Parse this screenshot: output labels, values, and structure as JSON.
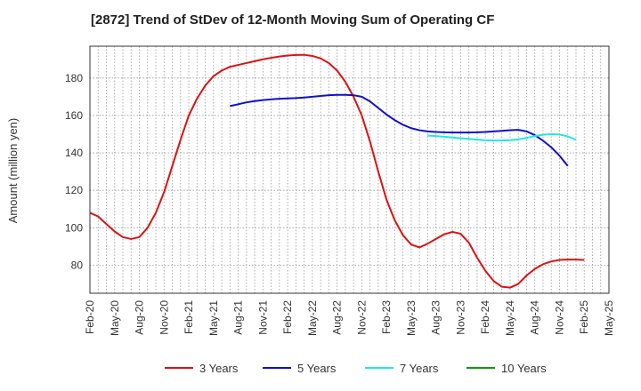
{
  "chart_data": {
    "type": "line",
    "title": "[2872]  Trend of StDev of 12-Month Moving Sum of Operating CF",
    "xlabel": "",
    "ylabel": "Amount (million yen)",
    "ylim": [
      65,
      197
    ],
    "yticks": [
      80,
      100,
      120,
      140,
      160,
      180
    ],
    "xticks": [
      "Feb-20",
      "May-20",
      "Aug-20",
      "Nov-20",
      "Feb-21",
      "May-21",
      "Aug-21",
      "Nov-21",
      "Feb-22",
      "May-22",
      "Aug-22",
      "Nov-22",
      "Feb-23",
      "May-23",
      "Aug-23",
      "Nov-23",
      "Feb-24",
      "May-24",
      "Aug-24",
      "Nov-24",
      "Feb-25",
      "May-25"
    ],
    "grid": true,
    "legend_position": "bottom",
    "series": [
      {
        "name": "3 Years",
        "color": "#dd1111",
        "values": [
          [
            0,
            108
          ],
          [
            1,
            106
          ],
          [
            2,
            102
          ],
          [
            3,
            98
          ],
          [
            4,
            95
          ],
          [
            5,
            94
          ],
          [
            6,
            95
          ],
          [
            7,
            100
          ],
          [
            8,
            108
          ],
          [
            9,
            119
          ],
          [
            10,
            133
          ],
          [
            11,
            147
          ],
          [
            12,
            160
          ],
          [
            13,
            169
          ],
          [
            14,
            176
          ],
          [
            15,
            181
          ],
          [
            16,
            184
          ],
          [
            17,
            186
          ],
          [
            18,
            187
          ],
          [
            19,
            188
          ],
          [
            20,
            189
          ],
          [
            21,
            190
          ],
          [
            22,
            190.8
          ],
          [
            23,
            191.5
          ],
          [
            24,
            192
          ],
          [
            25,
            192.3
          ],
          [
            26,
            192.4
          ],
          [
            27,
            191.8
          ],
          [
            28,
            190.5
          ],
          [
            29,
            188
          ],
          [
            30,
            184
          ],
          [
            31,
            178
          ],
          [
            32,
            170
          ],
          [
            33,
            160
          ],
          [
            34,
            146
          ],
          [
            35,
            130
          ],
          [
            36,
            115
          ],
          [
            37,
            104
          ],
          [
            38,
            96
          ],
          [
            39,
            91
          ],
          [
            40,
            89.5
          ],
          [
            41,
            91.5
          ],
          [
            42,
            94
          ],
          [
            43,
            96.5
          ],
          [
            44,
            97.8
          ],
          [
            45,
            96.8
          ],
          [
            46,
            92
          ],
          [
            47,
            84
          ],
          [
            48,
            77
          ],
          [
            49,
            71.5
          ],
          [
            50,
            68.5
          ],
          [
            51,
            68
          ],
          [
            52,
            70
          ],
          [
            53,
            74.5
          ],
          [
            54,
            78
          ],
          [
            55,
            80.5
          ],
          [
            56,
            82
          ],
          [
            57,
            82.8
          ],
          [
            58,
            83
          ],
          [
            59,
            83
          ],
          [
            60,
            82.8
          ]
        ]
      },
      {
        "name": "5 Years",
        "color": "#0f0fcc",
        "values": [
          [
            17,
            165
          ],
          [
            18,
            166
          ],
          [
            19,
            167
          ],
          [
            20,
            167.7
          ],
          [
            21,
            168.2
          ],
          [
            22,
            168.6
          ],
          [
            23,
            168.9
          ],
          [
            24,
            169.1
          ],
          [
            25,
            169.3
          ],
          [
            26,
            169.6
          ],
          [
            27,
            170
          ],
          [
            28,
            170.4
          ],
          [
            29,
            170.8
          ],
          [
            30,
            171
          ],
          [
            31,
            171
          ],
          [
            32,
            170.8
          ],
          [
            33,
            170
          ],
          [
            34,
            167.5
          ],
          [
            35,
            164
          ],
          [
            36,
            160.5
          ],
          [
            37,
            157.5
          ],
          [
            38,
            155
          ],
          [
            39,
            153.2
          ],
          [
            40,
            152.1
          ],
          [
            41,
            151.5
          ],
          [
            42,
            151.2
          ],
          [
            43,
            151
          ],
          [
            44,
            150.9
          ],
          [
            45,
            150.9
          ],
          [
            46,
            150.9
          ],
          [
            47,
            151
          ],
          [
            48,
            151.2
          ],
          [
            49,
            151.5
          ],
          [
            50,
            151.8
          ],
          [
            51,
            152.1
          ],
          [
            52,
            152.3
          ],
          [
            53,
            151.5
          ],
          [
            54,
            149.5
          ],
          [
            55,
            146.5
          ],
          [
            56,
            143
          ],
          [
            57,
            138.5
          ],
          [
            58,
            133
          ]
        ]
      },
      {
        "name": "7 Years",
        "color": "#22e6e6",
        "values": [
          [
            41,
            149.2
          ],
          [
            42,
            149
          ],
          [
            43,
            148.6
          ],
          [
            44,
            148.2
          ],
          [
            45,
            147.8
          ],
          [
            46,
            147.5
          ],
          [
            47,
            147.1
          ],
          [
            48,
            146.7
          ],
          [
            49,
            146.6
          ],
          [
            50,
            146.6
          ],
          [
            51,
            146.8
          ],
          [
            52,
            147.2
          ],
          [
            53,
            148
          ],
          [
            54,
            149
          ],
          [
            55,
            149.7
          ],
          [
            56,
            150
          ],
          [
            57,
            149.8
          ],
          [
            58,
            148.8
          ],
          [
            59,
            147
          ]
        ]
      },
      {
        "name": "10 Years",
        "color": "#119911",
        "values": []
      }
    ]
  }
}
